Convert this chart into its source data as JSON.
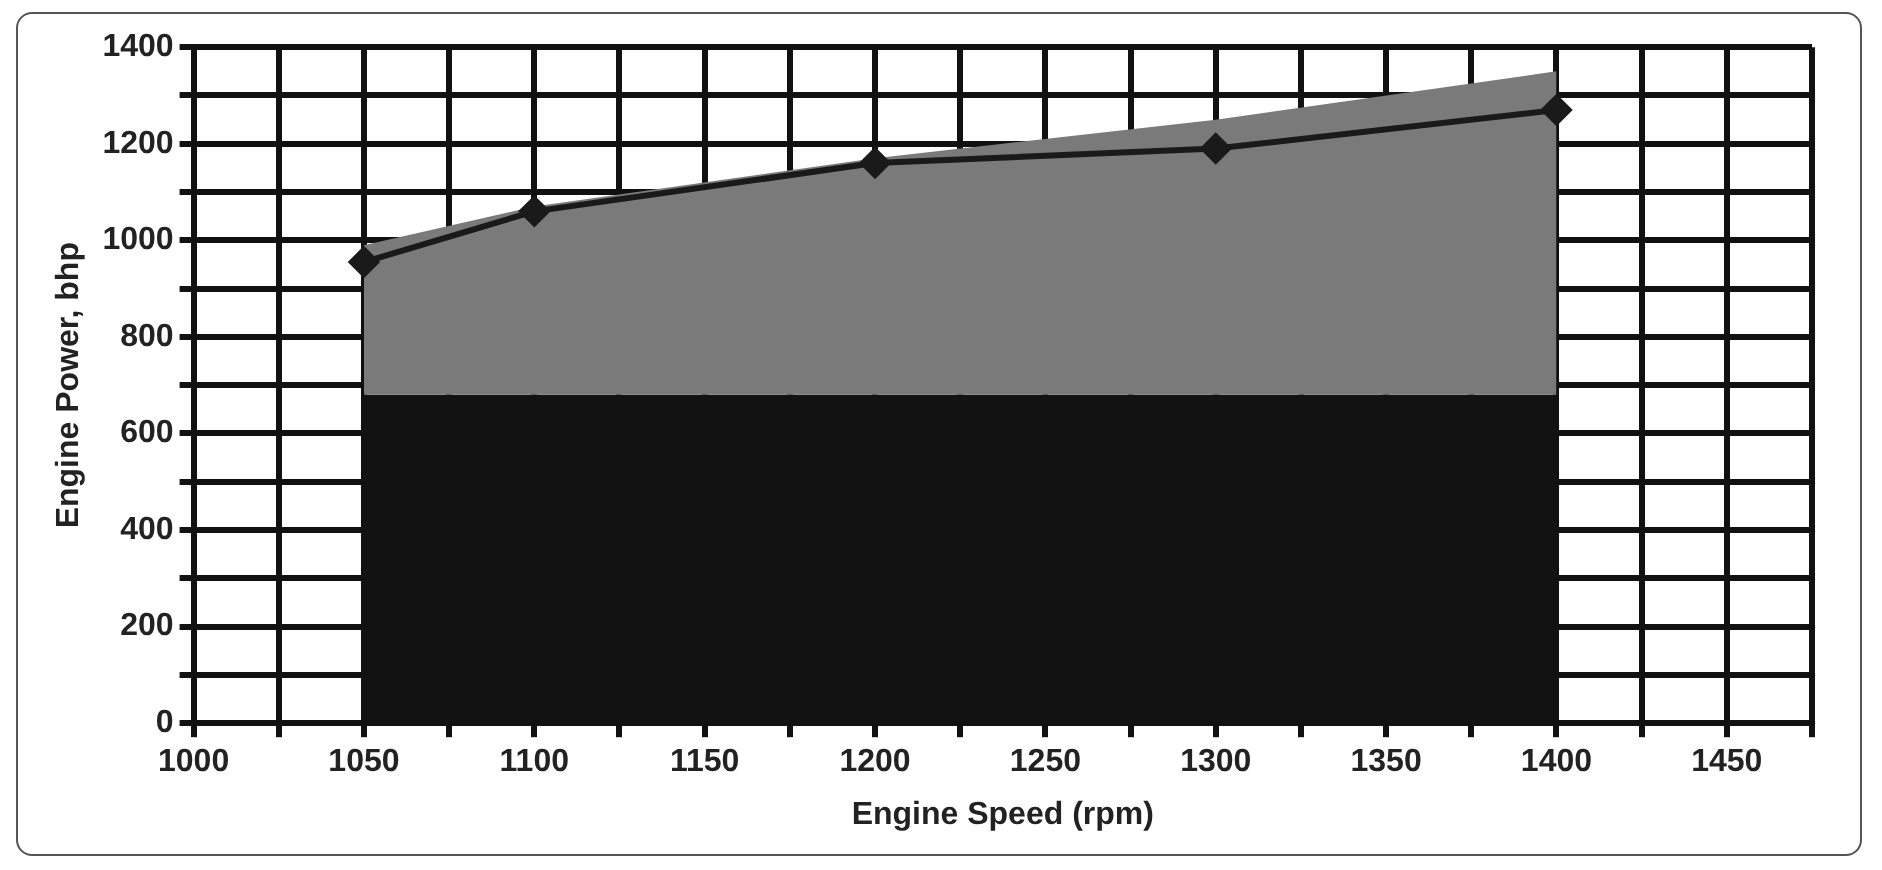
{
  "chart_data": {
    "type": "area",
    "xlabel": "Engine Speed (rpm)",
    "ylabel": "Engine Power, bhp",
    "xlim": [
      1000,
      1475
    ],
    "xticks": [
      1000,
      {
        "value": 1025,
        "label": null
      },
      1050,
      {
        "value": 1075,
        "label": null
      },
      1100,
      {
        "value": 1125,
        "label": null
      },
      1150,
      {
        "value": 1175,
        "label": null
      },
      1200,
      {
        "value": 1225,
        "label": null
      },
      1250,
      {
        "value": 1275,
        "label": null
      },
      1300,
      {
        "value": 1325,
        "label": null
      },
      1350,
      {
        "value": 1375,
        "label": null
      },
      1400,
      {
        "value": 1425,
        "label": null
      },
      1450,
      {
        "value": 1475,
        "label": null
      }
    ],
    "ylim": [
      0,
      1400
    ],
    "yticks": [
      0,
      {
        "value": 100,
        "label": null
      },
      200,
      {
        "value": 300,
        "label": null
      },
      400,
      {
        "value": 500,
        "label": null
      },
      600,
      {
        "value": 700,
        "label": null
      },
      800,
      {
        "value": 900,
        "label": null
      },
      1000,
      {
        "value": 1100,
        "label": null
      },
      1200,
      {
        "value": 1300,
        "label": null
      },
      1400
    ],
    "grid": true,
    "legend": false,
    "series": [
      {
        "type": "area",
        "color": "#121212",
        "x": [
          1050,
          1400
        ],
        "values": [
          680,
          680
        ]
      },
      {
        "type": "area",
        "color": "#7a7a7a",
        "x": [
          1050,
          1100,
          1200,
          1300,
          1400
        ],
        "values": [
          990,
          1070,
          1170,
          1250,
          1350
        ]
      },
      {
        "type": "line",
        "color": "#1a1a1a",
        "marker": "diamond",
        "x": [
          1050,
          1100,
          1200,
          1300,
          1400
        ],
        "values": [
          955,
          1060,
          1160,
          1190,
          1270
        ]
      }
    ]
  }
}
